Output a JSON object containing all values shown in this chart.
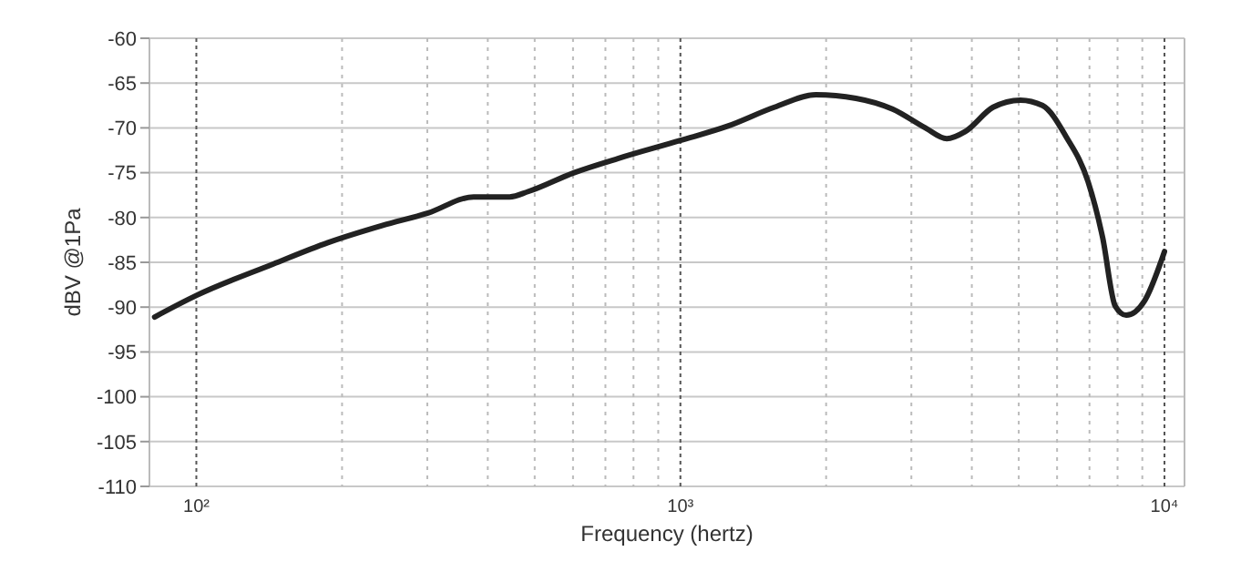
{
  "chart_data": {
    "type": "line",
    "xlabel": "Frequency (hertz)",
    "ylabel": "dBV @1Pa",
    "log": "x",
    "grid": true,
    "marker": "none",
    "line_style": "solid",
    "xlim": [
      80,
      11000
    ],
    "ylim": [
      -110,
      -60
    ],
    "xticks": [
      {
        "value": 100,
        "label": "10²"
      },
      {
        "value": 200,
        "label": null
      },
      {
        "value": 300,
        "label": null
      },
      {
        "value": 400,
        "label": null
      },
      {
        "value": 500,
        "label": null
      },
      {
        "value": 600,
        "label": null
      },
      {
        "value": 700,
        "label": null
      },
      {
        "value": 800,
        "label": null
      },
      {
        "value": 900,
        "label": null
      },
      {
        "value": 1000,
        "label": "10³"
      },
      {
        "value": 2000,
        "label": null
      },
      {
        "value": 3000,
        "label": null
      },
      {
        "value": 4000,
        "label": null
      },
      {
        "value": 5000,
        "label": null
      },
      {
        "value": 6000,
        "label": null
      },
      {
        "value": 7000,
        "label": null
      },
      {
        "value": 8000,
        "label": null
      },
      {
        "value": 9000,
        "label": null
      },
      {
        "value": 10000,
        "label": "10⁴"
      }
    ],
    "yticks": [
      -110,
      -105,
      -100,
      -95,
      -90,
      -85,
      -80,
      -75,
      -70,
      -65,
      -60
    ],
    "series": [
      {
        "color": "#222222",
        "x": [
          82,
          100,
          144,
          187,
          242,
          301,
          374,
          444,
          485,
          603,
          745,
          1000,
          1253,
          1563,
          1905,
          2305,
          2743,
          3206,
          3550,
          3878,
          4424,
          5039,
          5597,
          6266,
          6952,
          7449,
          7914,
          8337,
          9095,
          10000
        ],
        "values": [
          -91.1,
          -88.7,
          -85.2,
          -82.8,
          -80.9,
          -79.5,
          -77.7,
          -77.7,
          -77.1,
          -75,
          -73.4,
          -71.4,
          -69.8,
          -67.7,
          -66.3,
          -66.7,
          -67.9,
          -70,
          -71.2,
          -70.4,
          -67.7,
          -66.9,
          -67.5,
          -71,
          -76,
          -82.2,
          -89.9,
          -90.9,
          -89.3,
          -83.8
        ]
      }
    ]
  }
}
